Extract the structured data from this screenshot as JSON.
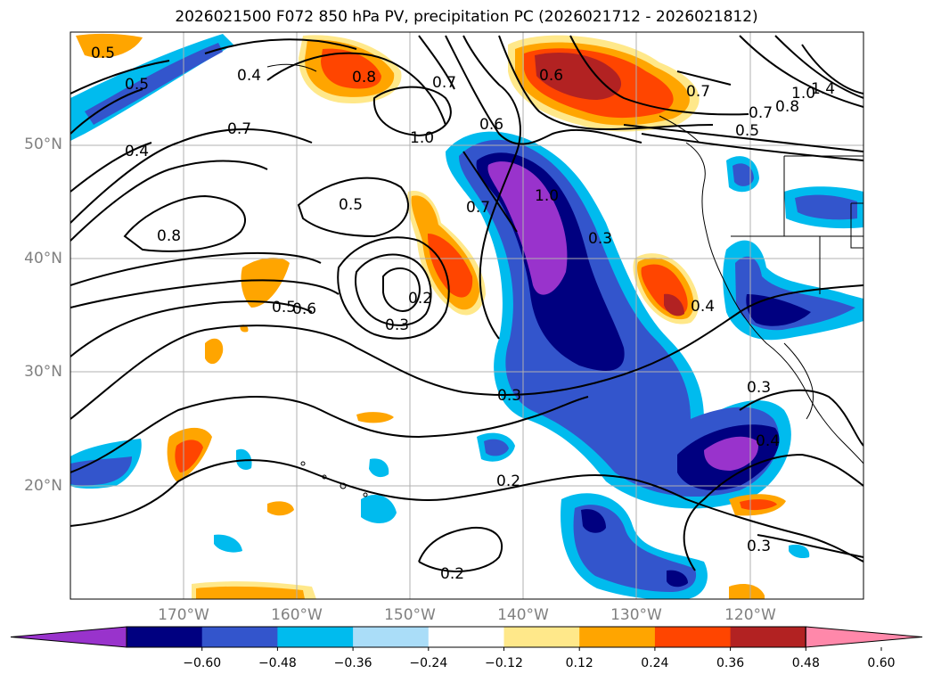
{
  "title": "2026021500 F072 850 hPa PV, precipitation PC (2026021712 - 2026021812)",
  "map": {
    "lon_range": [
      -180,
      -110
    ],
    "lat_range": [
      10,
      60
    ],
    "lat_ticks": [
      "50°N",
      "40°N",
      "30°N",
      "20°N"
    ],
    "lon_ticks": [
      "170°W",
      "160°W",
      "150°W",
      "140°W",
      "130°W",
      "120°W"
    ],
    "grid": true,
    "contour_labels": [
      "0.5",
      "0.5",
      "0.4",
      "0.8",
      "0.7",
      "0.6",
      "0.7",
      "1.0",
      "0.8",
      "1.0",
      "1.4",
      "0.7",
      "0.5",
      "0.4",
      "0.7",
      "0.5",
      "0.8",
      "0.6",
      "0.5",
      "0.2",
      "0.3",
      "0.7",
      "0.6",
      "0.3",
      "0.4",
      "0.3",
      "0.3",
      "0.4",
      "0.2",
      "0.2",
      "0.3",
      "1.0"
    ]
  },
  "colorbar": {
    "colors": [
      "#9933cc",
      "#000080",
      "#3355cc",
      "#00bbee",
      "#aaddf8",
      "#ffffff",
      "#ffe88a",
      "#ffa500",
      "#ff4500",
      "#b22222",
      "#ff88aa"
    ],
    "tick_labels": [
      "−0.60",
      "−0.48",
      "−0.36",
      "−0.24",
      "−0.12",
      "0.12",
      "0.24",
      "0.36",
      "0.48",
      "0.60"
    ]
  }
}
